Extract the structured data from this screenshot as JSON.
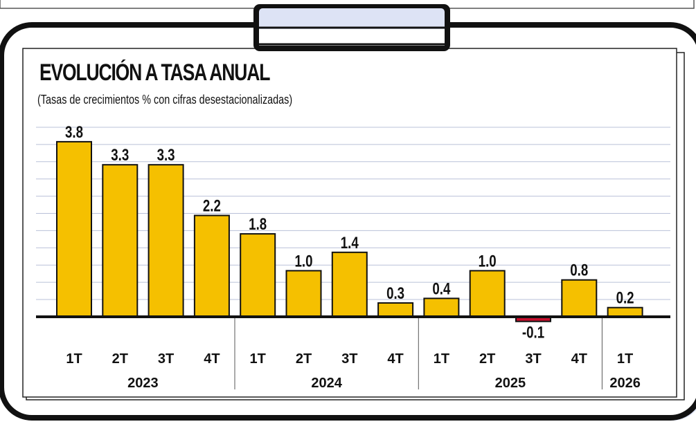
{
  "chart_data": {
    "type": "bar",
    "title": "EVOLUCIÓN A TASA ANUAL",
    "subtitle": "(Tasas de crecimientos % con cifras desestacionalizadas)",
    "categories": [
      "1T",
      "2T",
      "3T",
      "4T",
      "1T",
      "2T",
      "3T",
      "4T",
      "1T",
      "2T",
      "3T",
      "4T",
      "1T"
    ],
    "years": [
      {
        "label": "2023",
        "quarters": 4
      },
      {
        "label": "2024",
        "quarters": 4
      },
      {
        "label": "2025",
        "quarters": 4
      },
      {
        "label": "2026",
        "quarters": 1
      }
    ],
    "values": [
      3.8,
      3.3,
      3.3,
      2.2,
      1.8,
      1.0,
      1.4,
      0.3,
      0.4,
      1.0,
      -0.1,
      0.8,
      0.2
    ],
    "value_labels": [
      "3.8",
      "3.3",
      "3.3",
      "2.2",
      "1.8",
      "1.0",
      "1.4",
      "0.3",
      "0.4",
      "1.0",
      "-0.1",
      "0.8",
      "0.2"
    ],
    "ylim": [
      -0.1,
      4.5
    ],
    "grid": true,
    "colors": {
      "positive_bar": "#f5c000",
      "negative_bar": "#c8102e",
      "gridline": "#b9c0d8",
      "frame": "#111111",
      "clip": "#dde3f5"
    }
  }
}
